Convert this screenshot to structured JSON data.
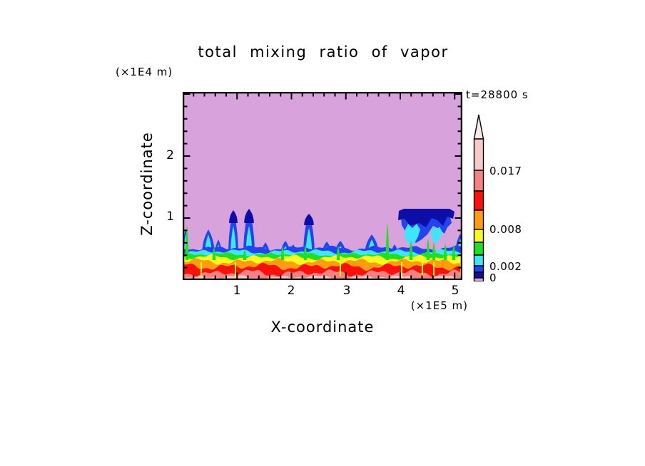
{
  "title": "total mixing ratio of vapor",
  "annotations": {
    "time_label": "t=28800 s",
    "z_axis_unit": "(×1E4 m)",
    "x_axis_unit": "(×1E5 m)"
  },
  "axes": {
    "x_label": "X-coordinate",
    "z_label": "Z-coordinate",
    "x_tick_labels": [
      "1",
      "2",
      "3",
      "4",
      "5"
    ],
    "z_tick_labels": [
      "2",
      "1"
    ]
  },
  "colorbar": {
    "labels": [
      {
        "text": "0.017"
      },
      {
        "text": "0.008"
      },
      {
        "text": "0.002"
      },
      {
        "text": "0"
      }
    ]
  },
  "chart_data": {
    "type": "heatmap",
    "subtype": "filled_contour",
    "title": "total mixing ratio of vapor",
    "xlabel": "X-coordinate",
    "ylabel": "Z-coordinate",
    "x_unit": "(×1E5 m)",
    "z_unit": "(×1E4 m)",
    "time_annotation": "t=28800 s",
    "x_range": [
      0,
      5.15
    ],
    "z_range": [
      0,
      3.03
    ],
    "x_major_ticks": [
      1,
      2,
      3,
      4,
      5
    ],
    "z_major_ticks": [
      1,
      2
    ],
    "minor_tick_step": 0.2,
    "contour_levels": [
      0,
      0.001,
      0.002,
      0.004,
      0.006,
      0.008,
      0.011,
      0.014,
      0.017
    ],
    "labeled_levels": [
      0,
      0.002,
      0.008,
      0.017
    ],
    "palette_low_to_high": [
      "#D8A3DC",
      "#0D0DA8",
      "#2244EE",
      "#3DE6FA",
      "#1FDF1F",
      "#FAFA1E",
      "#FF9D12",
      "#FA100D",
      "#F58282",
      "#F9C8C8"
    ],
    "overflow_color": "#FBE9E9",
    "description": "Vertical cross-section of total vapor mixing ratio at t=28800 s: values near 0.017+ at the surface (pink/red layers) decreasing with height through orange, yellow, green, cyan and blue layers; near-zero (violet) aloft, with moist convective plumes and an anvil-shaped cloud penetrating upward around x=4.0-4.9e5 m.",
    "render": {
      "plotW": 392,
      "plotH": 264,
      "pxPerX": 76.25,
      "pxPerZ": 87,
      "tickMinor": 5,
      "tickMajor": 9,
      "bandBase": 230,
      "bands": [
        {
          "c": "#2244EE",
          "y": 219,
          "a": 2.0
        },
        {
          "c": "#3DE6FA",
          "y": 224,
          "a": 2.0
        },
        {
          "c": "#1FDF1F",
          "y": 228,
          "a": 1.6
        },
        {
          "c": "#FAFA1E",
          "y": 232,
          "a": 2.2
        },
        {
          "c": "#FF9D12",
          "y": 238,
          "a": 2.6
        },
        {
          "c": "#FA100D",
          "y": 245,
          "a": 3.0
        },
        {
          "c": "#F58282",
          "y": 254,
          "a": 3.0
        },
        {
          "c": "#F9C8C8",
          "y": 260,
          "a": 1.6
        }
      ],
      "plumes": [
        {
          "x": 4,
          "t": 192,
          "w": 4,
          "cap": 0,
          "core": 1
        },
        {
          "x": 36,
          "t": 193,
          "w": 9,
          "cap": 0,
          "core": 1
        },
        {
          "x": 50,
          "t": 207,
          "w": 5,
          "cap": 0,
          "core": 1
        },
        {
          "x": 71,
          "t": 166,
          "w": 7,
          "cap": 18,
          "core": 1
        },
        {
          "x": 93,
          "t": 164,
          "w": 8,
          "cap": 20,
          "core": 1
        },
        {
          "x": 116,
          "t": 211,
          "w": 6,
          "cap": 0,
          "core": 1
        },
        {
          "x": 144,
          "t": 209,
          "w": 7,
          "cap": 0,
          "core": 1
        },
        {
          "x": 155,
          "t": 214,
          "w": 5,
          "cap": 0,
          "core": 1
        },
        {
          "x": 177,
          "t": 171,
          "w": 8,
          "cap": 16,
          "core": 1
        },
        {
          "x": 202,
          "t": 210,
          "w": 7,
          "cap": 0,
          "core": 1
        },
        {
          "x": 221,
          "t": 209,
          "w": 8,
          "cap": 0,
          "core": 1
        },
        {
          "x": 265,
          "t": 200,
          "w": 10,
          "cap": 0,
          "core": 1
        },
        {
          "x": 297,
          "t": 214,
          "w": 5,
          "cap": 0,
          "core": 0
        },
        {
          "x": 389,
          "t": 199,
          "w": 7,
          "cap": 0,
          "core": 1
        }
      ],
      "anvil": {
        "navy": [
          [
            302,
            180
          ],
          [
            303,
            167
          ],
          [
            310,
            164
          ],
          [
            374,
            164
          ],
          [
            381,
            168
          ],
          [
            379,
            178
          ],
          [
            371,
            175
          ],
          [
            365,
            188
          ],
          [
            357,
            180
          ],
          [
            349,
            177
          ],
          [
            341,
            190
          ],
          [
            331,
            184
          ],
          [
            319,
            188
          ],
          [
            311,
            178
          ]
        ],
        "blue": [
          [
            306,
            176
          ],
          [
            374,
            172
          ],
          [
            377,
            184
          ],
          [
            371,
            190
          ],
          [
            367,
            199
          ],
          [
            359,
            192
          ],
          [
            351,
            188
          ],
          [
            343,
            200
          ],
          [
            335,
            207
          ],
          [
            327,
            212
          ],
          [
            319,
            205
          ],
          [
            313,
            197
          ],
          [
            307,
            187
          ]
        ],
        "cores": [
          [
            [
              312,
              193
            ],
            [
              316,
              185
            ],
            [
              322,
              191
            ],
            [
              328,
              185
            ],
            [
              333,
              193
            ],
            [
              330,
              203
            ],
            [
              324,
              214
            ],
            [
              317,
              214
            ],
            [
              311,
              204
            ]
          ],
          [
            [
              348,
              195
            ],
            [
              352,
              189
            ],
            [
              356,
              193
            ],
            [
              360,
              189
            ],
            [
              364,
              197
            ],
            [
              360,
              207
            ],
            [
              354,
              213
            ],
            [
              349,
              205
            ]
          ]
        ]
      },
      "green_spikes": [
        {
          "x": 6,
          "t": 186
        },
        {
          "x": 44,
          "t": 218
        },
        {
          "x": 87,
          "t": 220
        },
        {
          "x": 140,
          "t": 216
        },
        {
          "x": 172,
          "t": 214
        },
        {
          "x": 218,
          "t": 216
        },
        {
          "x": 287,
          "t": 183
        },
        {
          "x": 320,
          "t": 208
        },
        {
          "x": 344,
          "t": 205
        },
        {
          "x": 352,
          "t": 210
        },
        {
          "x": 368,
          "t": 212
        },
        {
          "x": 380,
          "t": 214
        }
      ],
      "yellow_streaks": [
        26,
        74,
        221,
        307,
        336,
        352,
        390
      ],
      "colorbar_segments": [
        {
          "c": "#F9C8C8",
          "h": 44
        },
        {
          "c": "#F58282",
          "h": 29
        },
        {
          "c": "#FA100D",
          "h": 27
        },
        {
          "c": "#FF9D12",
          "h": 27
        },
        {
          "c": "#FAFA1E",
          "h": 18
        },
        {
          "c": "#1FDF1F",
          "h": 18
        },
        {
          "c": "#3DE6FA",
          "h": 15
        },
        {
          "c": "#2244EE",
          "h": 9
        },
        {
          "c": "#0D0DA8",
          "h": 8
        },
        {
          "c": "#D8A3DC",
          "h": 5
        }
      ]
    }
  }
}
